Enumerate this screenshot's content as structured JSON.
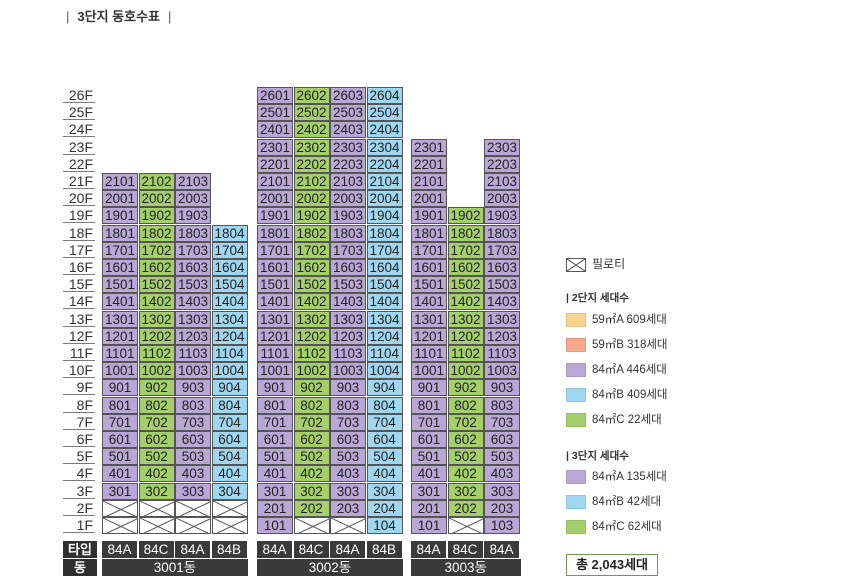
{
  "title": "3단지 동호수표",
  "floors": [
    "26F",
    "25F",
    "24F",
    "23F",
    "22F",
    "21F",
    "20F",
    "19F",
    "18F",
    "17F",
    "16F",
    "15F",
    "14F",
    "13F",
    "12F",
    "11F",
    "10F",
    "9F",
    "8F",
    "7F",
    "6F",
    "5F",
    "4F",
    "3F",
    "2F",
    "1F"
  ],
  "type_header": "타입",
  "dong_header": "동",
  "colors": {
    "84A": "#b9a8d6",
    "84B": "#9fd7f1",
    "84C": "#a5cf6a",
    "59A": "#f9d48c",
    "59B": "#f6a98c"
  },
  "buildings": [
    {
      "name": "3001동",
      "lines": [
        {
          "type": "84A",
          "top": 21,
          "units": {
            "3": "301",
            "4": "401",
            "5": "501",
            "6": "601",
            "7": "701",
            "8": "801",
            "9": "901",
            "10": "1001",
            "11": "1101",
            "12": "1201",
            "13": "1301",
            "14": "1401",
            "15": "1501",
            "16": "1601",
            "17": "1701",
            "18": "1801",
            "19": "1901",
            "20": "2001",
            "21": "2101"
          },
          "pilotis": [
            1,
            2
          ]
        },
        {
          "type": "84C",
          "top": 21,
          "units": {
            "3": "302",
            "4": "402",
            "5": "502",
            "6": "602",
            "7": "702",
            "8": "802",
            "9": "902",
            "10": "1002",
            "11": "1102",
            "12": "1202",
            "13": "1302",
            "14": "1402",
            "15": "1502",
            "16": "1602",
            "17": "1702",
            "18": "1802",
            "19": "1902",
            "20": "2002",
            "21": "2102"
          },
          "pilotis": [
            1,
            2
          ]
        },
        {
          "type": "84A",
          "top": 21,
          "units": {
            "3": "303",
            "4": "403",
            "5": "503",
            "6": "603",
            "7": "703",
            "8": "803",
            "9": "903",
            "10": "1003",
            "11": "1103",
            "12": "1203",
            "13": "1303",
            "14": "1403",
            "15": "1503",
            "16": "1603",
            "17": "1703",
            "18": "1803",
            "19": "1903",
            "20": "2003",
            "21": "2103"
          },
          "pilotis": [
            1,
            2
          ]
        },
        {
          "type": "84B",
          "top": 18,
          "units": {
            "3": "304",
            "4": "404",
            "5": "504",
            "6": "604",
            "7": "704",
            "8": "804",
            "9": "904",
            "10": "1004",
            "11": "1104",
            "12": "1204",
            "13": "1304",
            "14": "1404",
            "15": "1504",
            "16": "1604",
            "17": "1704",
            "18": "1804"
          },
          "pilotis": [
            1,
            2
          ]
        }
      ]
    },
    {
      "name": "3002동",
      "lines": [
        {
          "type": "84A",
          "top": 26,
          "units": {
            "1": "101",
            "2": "201",
            "3": "301",
            "4": "401",
            "5": "501",
            "6": "601",
            "7": "701",
            "8": "801",
            "9": "901",
            "10": "1001",
            "11": "1101",
            "12": "1201",
            "13": "1301",
            "14": "1401",
            "15": "1501",
            "16": "1601",
            "17": "1701",
            "18": "1801",
            "19": "1901",
            "20": "2001",
            "21": "2101",
            "22": "2201",
            "23": "2301",
            "24": "2401",
            "25": "2501",
            "26": "2601"
          },
          "pilotis": []
        },
        {
          "type": "84C",
          "top": 26,
          "units": {
            "2": "202",
            "3": "302",
            "4": "402",
            "5": "502",
            "6": "602",
            "7": "702",
            "8": "802",
            "9": "902",
            "10": "1002",
            "11": "1102",
            "12": "1202",
            "13": "1302",
            "14": "1402",
            "15": "1502",
            "16": "1602",
            "17": "1702",
            "18": "1802",
            "19": "1902",
            "20": "2002",
            "21": "2102",
            "22": "2202",
            "23": "2302",
            "24": "2402",
            "25": "2502",
            "26": "2602"
          },
          "pilotis": [
            1
          ]
        },
        {
          "type": "84A",
          "top": 26,
          "units": {
            "2": "203",
            "3": "303",
            "4": "403",
            "5": "503",
            "6": "603",
            "7": "703",
            "8": "803",
            "9": "903",
            "10": "1003",
            "11": "1103",
            "12": "1203",
            "13": "1303",
            "14": "1403",
            "15": "1503",
            "16": "1603",
            "17": "1703",
            "18": "1803",
            "19": "1903",
            "20": "2003",
            "21": "2103",
            "22": "2203",
            "23": "2303",
            "24": "2403",
            "25": "2503",
            "26": "2603"
          },
          "pilotis": [
            1
          ]
        },
        {
          "type": "84B",
          "top": 26,
          "units": {
            "1": "104",
            "2": "204",
            "3": "304",
            "4": "404",
            "5": "504",
            "6": "604",
            "7": "704",
            "8": "804",
            "9": "904",
            "10": "1004",
            "11": "1104",
            "12": "1204",
            "13": "1304",
            "14": "1404",
            "15": "1504",
            "16": "1604",
            "17": "1704",
            "18": "1804",
            "19": "1904",
            "20": "2004",
            "21": "2104",
            "22": "2204",
            "23": "2304",
            "24": "2404",
            "25": "2504",
            "26": "2604"
          },
          "pilotis": []
        }
      ]
    },
    {
      "name": "3003동",
      "lines": [
        {
          "type": "84A",
          "top": 23,
          "units": {
            "1": "101",
            "2": "201",
            "3": "301",
            "4": "401",
            "5": "501",
            "6": "601",
            "7": "701",
            "8": "801",
            "9": "901",
            "10": "1001",
            "11": "1101",
            "12": "1201",
            "13": "1301",
            "14": "1401",
            "15": "1501",
            "16": "1601",
            "17": "1701",
            "18": "1801",
            "19": "1901",
            "20": "2001",
            "21": "2101",
            "22": "2201",
            "23": "2301"
          },
          "pilotis": []
        },
        {
          "type": "84C",
          "top": 19,
          "units": {
            "2": "202",
            "3": "302",
            "4": "402",
            "5": "502",
            "6": "602",
            "7": "702",
            "8": "802",
            "9": "902",
            "10": "1002",
            "11": "1102",
            "12": "1202",
            "13": "1302",
            "14": "1402",
            "15": "1502",
            "16": "1602",
            "17": "1702",
            "18": "1802",
            "19": "1902"
          },
          "pilotis": [
            1
          ]
        },
        {
          "type": "84A",
          "top": 23,
          "units": {
            "1": "103",
            "2": "203",
            "3": "303",
            "4": "403",
            "5": "503",
            "6": "603",
            "7": "703",
            "8": "803",
            "9": "903",
            "10": "1003",
            "11": "1103",
            "12": "1203",
            "13": "1303",
            "14": "1403",
            "15": "1503",
            "16": "1603",
            "17": "1703",
            "18": "1803",
            "19": "1903",
            "20": "2003",
            "21": "2103",
            "22": "2203",
            "23": "2303"
          },
          "pilotis": []
        }
      ]
    }
  ],
  "legend": {
    "pilotis_label": "필로티",
    "complex2_header": "2단지 세대수",
    "complex2_items": [
      {
        "type": "59A",
        "label": "59㎡A  609세대"
      },
      {
        "type": "59B",
        "label": "59㎡B  318세대"
      },
      {
        "type": "84A",
        "label": "84㎡A  446세대"
      },
      {
        "type": "84B",
        "label": "84㎡B  409세대"
      },
      {
        "type": "84C",
        "label": "84㎡C  22세대"
      }
    ],
    "complex3_header": "3단지 세대수",
    "complex3_items": [
      {
        "type": "84A",
        "label": "84㎡A  135세대"
      },
      {
        "type": "84B",
        "label": "84㎡B  42세대"
      },
      {
        "type": "84C",
        "label": "84㎡C  62세대"
      }
    ],
    "total": "총 2,043세대"
  }
}
